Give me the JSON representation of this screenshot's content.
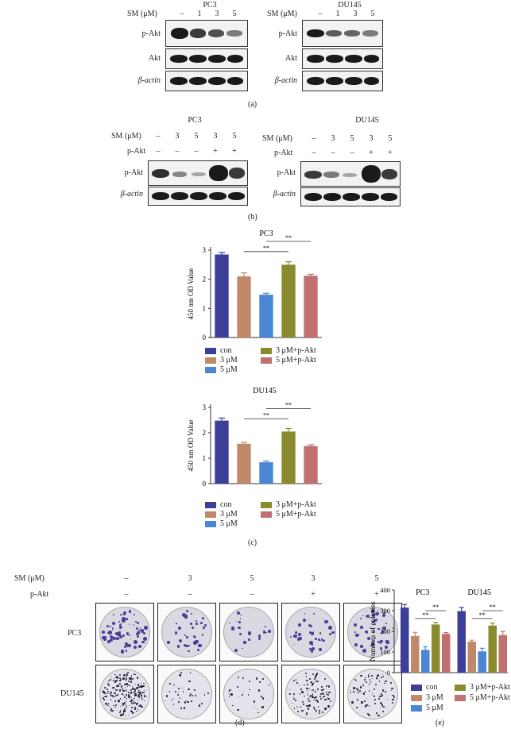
{
  "panel_a": {
    "label": "(a)",
    "left": {
      "cell": "PC3",
      "sm_label": "SM (μM)",
      "doses": [
        "–",
        "1",
        "3",
        "5"
      ],
      "rows": [
        "p-Akt",
        "Akt",
        "β-actin"
      ]
    },
    "right": {
      "cell": "DU145",
      "sm_label": "SM (μM)",
      "doses": [
        "–",
        "1",
        "3",
        "5"
      ],
      "rows": [
        "p-Akt",
        "Akt",
        "β-actin"
      ]
    }
  },
  "panel_b": {
    "label": "(b)",
    "left": {
      "cell": "PC3",
      "sm_label": "SM (μM)",
      "pakt_label": "p-Akt",
      "doses": [
        "–",
        "3",
        "5",
        "3",
        "5"
      ],
      "pakt": [
        "–",
        "–",
        "–",
        "+",
        "+"
      ],
      "rows": [
        "p-Akt",
        "β-actin"
      ]
    },
    "right": {
      "cell": "DU145",
      "sm_label": "SM (μM)",
      "pakt_label": "p-Akt",
      "doses": [
        "–",
        "3",
        "5",
        "3",
        "5"
      ],
      "pakt": [
        "–",
        "–",
        "–",
        "+",
        "+"
      ],
      "rows": [
        "p-Akt",
        "β-actin"
      ]
    }
  },
  "panel_c": {
    "label": "(c)"
  },
  "panel_d": {
    "label": "(d)",
    "sm_label": "SM (μM)",
    "pakt_label": "p-Akt",
    "doses": [
      "–",
      "3",
      "5",
      "3",
      "5"
    ],
    "pakt": [
      "–",
      "–",
      "–",
      "+",
      "+"
    ],
    "rows": [
      "PC3",
      "DU145"
    ]
  },
  "panel_e": {
    "label": "(e)"
  },
  "legend": [
    "con",
    "3 μM",
    "5 μM",
    "3 μM+p-Akt",
    "5 μM+p-Akt"
  ],
  "colors": [
    "#3b3f98",
    "#c08a6a",
    "#4a86d4",
    "#8a8a2e",
    "#c07070"
  ],
  "chart_data": [
    {
      "type": "bar",
      "title": "PC3",
      "ylabel": "450 nm OD Value",
      "ylim": [
        0,
        3
      ],
      "yticks": [
        "0",
        "1",
        "2",
        "3"
      ],
      "categories": [
        "con",
        "3 μM",
        "5 μM",
        "3 μM+p-Akt",
        "5 μM+p-Akt"
      ],
      "values": [
        2.85,
        2.1,
        1.47,
        2.5,
        2.12
      ],
      "errors": [
        0.07,
        0.12,
        0.05,
        0.1,
        0.05
      ],
      "annotations": [
        "**",
        "**"
      ]
    },
    {
      "type": "bar",
      "title": "DU145",
      "ylabel": "450 nm OD Value",
      "ylim": [
        0,
        3
      ],
      "yticks": [
        "0",
        "1",
        "2",
        "3"
      ],
      "categories": [
        "con",
        "3 μM",
        "5 μM",
        "3 μM+p-Akt",
        "5 μM+p-Akt"
      ],
      "values": [
        2.48,
        1.57,
        0.84,
        2.05,
        1.48
      ],
      "errors": [
        0.1,
        0.05,
        0.05,
        0.12,
        0.05
      ],
      "annotations": [
        "**",
        "**"
      ]
    },
    {
      "type": "bar",
      "ylabel": "Numbers of colonies",
      "ylim": [
        0,
        400
      ],
      "yticks": [
        "0",
        "100",
        "200",
        "300",
        "400"
      ],
      "groups": [
        "PC3",
        "DU145"
      ],
      "series": [
        {
          "name": "con",
          "values": [
            315,
            298
          ],
          "errors": [
            15,
            18
          ]
        },
        {
          "name": "3 μM",
          "values": [
            177,
            150
          ],
          "errors": [
            18,
            7
          ]
        },
        {
          "name": "5 μM",
          "values": [
            110,
            103
          ],
          "errors": [
            16,
            15
          ]
        },
        {
          "name": "3 μM+p-Akt",
          "values": [
            233,
            228
          ],
          "errors": [
            10,
            12
          ]
        },
        {
          "name": "5 μM+p-Akt",
          "values": [
            188,
            182
          ],
          "errors": [
            6,
            18
          ]
        }
      ],
      "annotations": [
        "**",
        "**",
        "**",
        "**"
      ]
    }
  ]
}
